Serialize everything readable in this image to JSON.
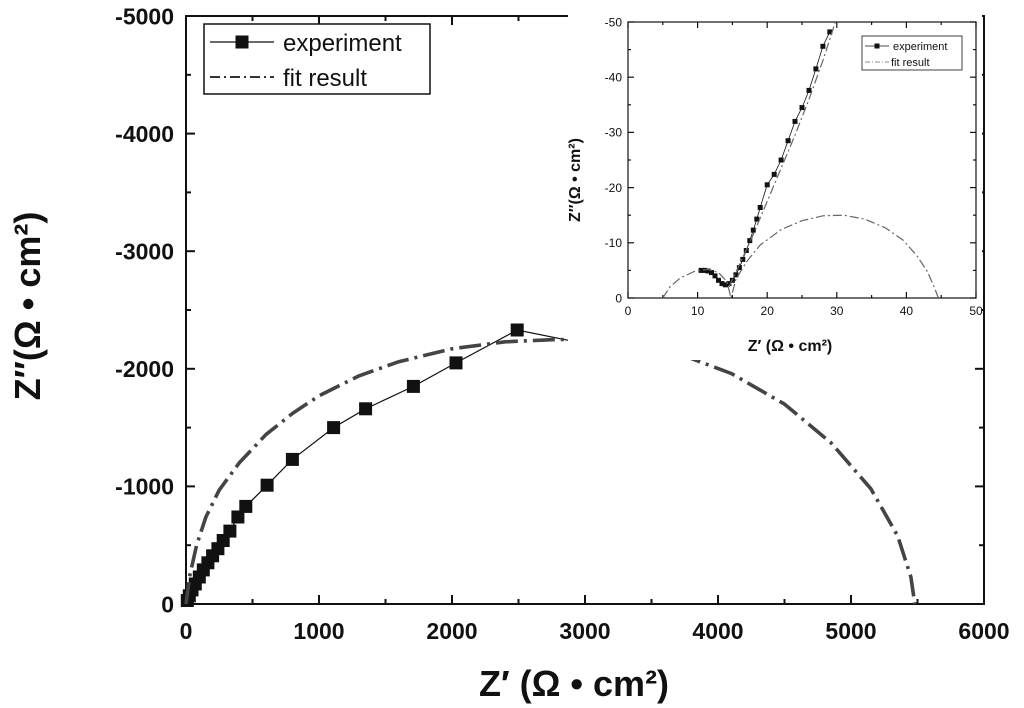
{
  "chart_data": [
    {
      "type": "scatter",
      "xlabel": "Z′ (Ω • cm²)",
      "ylabel": "Z″(Ω • cm²)",
      "xlim": [
        0,
        6000
      ],
      "ylim": [
        0,
        -5000
      ],
      "xticks": [
        "0",
        "1000",
        "2000",
        "3000",
        "4000",
        "5000",
        "6000"
      ],
      "yticks": [
        "0",
        "-1000",
        "-2000",
        "-3000",
        "-4000",
        "-5000"
      ],
      "legend": {
        "placement": "top-left",
        "entries": [
          "experiment",
          "fit result"
        ]
      },
      "series": [
        {
          "name": "experiment",
          "style": "line+square",
          "x": [
            10,
            25,
            45,
            70,
            100,
            130,
            165,
            200,
            240,
            280,
            330,
            390,
            450,
            610,
            800,
            1110,
            1350,
            1710,
            2030,
            2490,
            3060
          ],
          "y": [
            -30,
            -70,
            -120,
            -170,
            -230,
            -290,
            -350,
            -410,
            -470,
            -540,
            -620,
            -740,
            -830,
            -1010,
            -1230,
            -1500,
            -1660,
            -1850,
            -2050,
            -2330,
            -2200
          ]
        },
        {
          "name": "fit result",
          "style": "dash-dot",
          "x": [
            0,
            30,
            80,
            150,
            250,
            400,
            600,
            800,
            1000,
            1300,
            1600,
            2000,
            2400,
            2800,
            3250,
            3700,
            4100,
            4500,
            4850,
            5150,
            5350,
            5450,
            5480
          ],
          "y": [
            0,
            -250,
            -500,
            -740,
            -970,
            -1200,
            -1440,
            -1620,
            -1770,
            -1940,
            -2060,
            -2170,
            -2230,
            -2250,
            -2230,
            -2130,
            -1960,
            -1700,
            -1370,
            -980,
            -580,
            -230,
            0
          ]
        }
      ]
    },
    {
      "type": "scatter",
      "xlabel": "Z′ (Ω • cm²)",
      "ylabel": "Z″(Ω • cm²)",
      "xlim": [
        0,
        50
      ],
      "ylim": [
        0,
        -50
      ],
      "xticks": [
        "0",
        "10",
        "20",
        "30",
        "40",
        "50"
      ],
      "yticks": [
        "0",
        "-10",
        "-20",
        "-30",
        "-40",
        "-50"
      ],
      "legend": {
        "placement": "top-right",
        "entries": [
          "experiment",
          "fit result"
        ]
      },
      "series": [
        {
          "name": "experiment",
          "style": "line+square",
          "x": [
            10.5,
            11,
            11.5,
            12,
            12.5,
            13,
            13.5,
            14,
            14.5,
            15,
            15.5,
            16,
            16.5,
            17,
            17.5,
            18,
            18.5,
            19,
            20,
            21,
            22,
            23,
            24,
            25,
            26,
            27,
            28,
            29
          ],
          "y": [
            -5,
            -5,
            -4.9,
            -4.6,
            -4,
            -3.2,
            -2.6,
            -2.4,
            -2.6,
            -3.2,
            -4.2,
            -5.5,
            -7,
            -8.6,
            -10.4,
            -12.3,
            -14.3,
            -16.4,
            -20.5,
            -22.4,
            -25,
            -28.5,
            -32,
            -34.5,
            -37.6,
            -41.5,
            -45.6,
            -48.2
          ]
        },
        {
          "name": "fit result",
          "style": "dash-dot",
          "x": [
            5,
            6,
            7.5,
            9.5,
            11.5,
            13,
            14.2,
            14.8,
            15.5,
            17,
            19,
            22,
            25,
            28,
            31,
            34,
            37,
            39.5,
            41.5,
            43,
            44,
            44.6
          ],
          "y": [
            0,
            -2,
            -3.6,
            -4.8,
            -5.2,
            -4.6,
            -3,
            0,
            -3.4,
            -6.5,
            -9.6,
            -12.4,
            -14,
            -14.9,
            -15,
            -14.3,
            -12.7,
            -10.5,
            -7.7,
            -4.8,
            -2,
            0
          ]
        },
        {
          "name": "fit result (line)",
          "style": "dash-dot",
          "x": [
            14.5,
            16,
            18,
            20,
            22,
            24,
            26,
            28,
            29.8
          ],
          "y": [
            -2,
            -6,
            -11.5,
            -17.5,
            -23.5,
            -29.5,
            -36,
            -43,
            -50
          ]
        }
      ]
    }
  ]
}
